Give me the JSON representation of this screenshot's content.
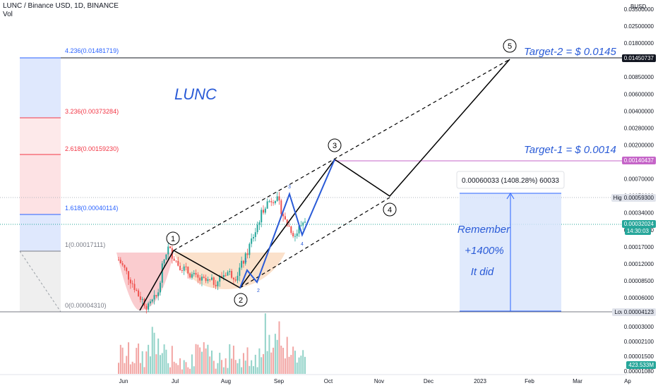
{
  "header": {
    "symbol_line": "LUNC / Binance USD, 1D, BINANCE",
    "vol": "Vol"
  },
  "price_axis": {
    "unit": "BUSD",
    "ticks": [
      "0.03500000",
      "0.02500000",
      "0.01800000",
      "0.01200000",
      "0.00850000",
      "0.00600000",
      "0.00400000",
      "0.00280000",
      "0.00200000",
      "0.00100000",
      "0.00070000",
      "0.00050000",
      "0.00034000",
      "0.00024000",
      "0.00017000",
      "0.00012000",
      "0.00008500",
      "0.00006000"
    ],
    "vol_ticks": [
      "0.00003000",
      "0.00002100",
      "0.00001500",
      "0.00001080"
    ]
  },
  "badges": {
    "target2_price": "0.01450737",
    "target1_price": "0.00140437",
    "high_label": "High",
    "high_value": "0.00059300",
    "current_price": "0.00032024",
    "countdown": "14:30:03",
    "low_label": "Low",
    "low_value": "0.00004123",
    "volume_value": "423.533M"
  },
  "time_axis": [
    "Jun",
    "Jul",
    "Aug",
    "Sep",
    "Oct",
    "Nov",
    "Dec",
    "2023",
    "Feb",
    "Mar",
    "Ap"
  ],
  "fib": [
    {
      "label": "4.236(0.01481719)",
      "color": "#2962ff"
    },
    {
      "label": "3.236(0.00373284)",
      "color": "#f23645"
    },
    {
      "label": "2.618(0.00159230)",
      "color": "#f23645"
    },
    {
      "label": "1.618(0.00040114)",
      "color": "#2962ff"
    },
    {
      "label": "1(0.00017111)",
      "color": "#787b86"
    },
    {
      "label": "0(0.00004310)",
      "color": "#787b86"
    }
  ],
  "annotations": {
    "title": "LUNC",
    "target2": "Target-2 = $ 0.0145",
    "target1": "Target-1 = $ 0.0014",
    "measure": "0.00060033 (1408.28%) 60033",
    "remember": "Remember",
    "pct": "+1400%",
    "it_did": "It did"
  },
  "waves": [
    "1",
    "2",
    "3",
    "4",
    "5"
  ],
  "subwaves": [
    "1",
    "2",
    "3",
    "4"
  ],
  "colors": {
    "up": "#26a69a",
    "down": "#ef5350",
    "wave_blue": "#2a5bd7",
    "target_purple": "#c565c8",
    "line": "#000000"
  },
  "chart_data": {
    "type": "candlestick",
    "title": "LUNC / Binance USD, 1D, BINANCE",
    "y_scale": "log",
    "x_range": [
      "Jun 2022",
      "Apr 2023"
    ],
    "ylim": [
      4.12e-05,
      0.035
    ],
    "fib_levels": [
      {
        "ratio": 4.236,
        "value": 0.01481719
      },
      {
        "ratio": 3.236,
        "value": 0.00373284
      },
      {
        "ratio": 2.618,
        "value": 0.0015923
      },
      {
        "ratio": 1.618,
        "value": 0.00040114
      },
      {
        "ratio": 1,
        "value": 0.00017111
      },
      {
        "ratio": 0,
        "value": 4.31e-05
      }
    ],
    "price_path": [
      0.00013,
      9e-05,
      6e-05,
      4.5e-05,
      6e-05,
      0.00017,
      0.00012,
      0.0001,
      8.5e-05,
      8e-05,
      8e-05,
      0.0001,
      9e-05,
      0.00014,
      0.00025,
      0.00045,
      0.00052,
      0.0003,
      0.00022,
      0.00032
    ],
    "targets": {
      "target1": 0.00140437,
      "target2": 0.01450737
    },
    "high": 0.000593,
    "low": 4.123e-05,
    "last": 0.00032024
  }
}
